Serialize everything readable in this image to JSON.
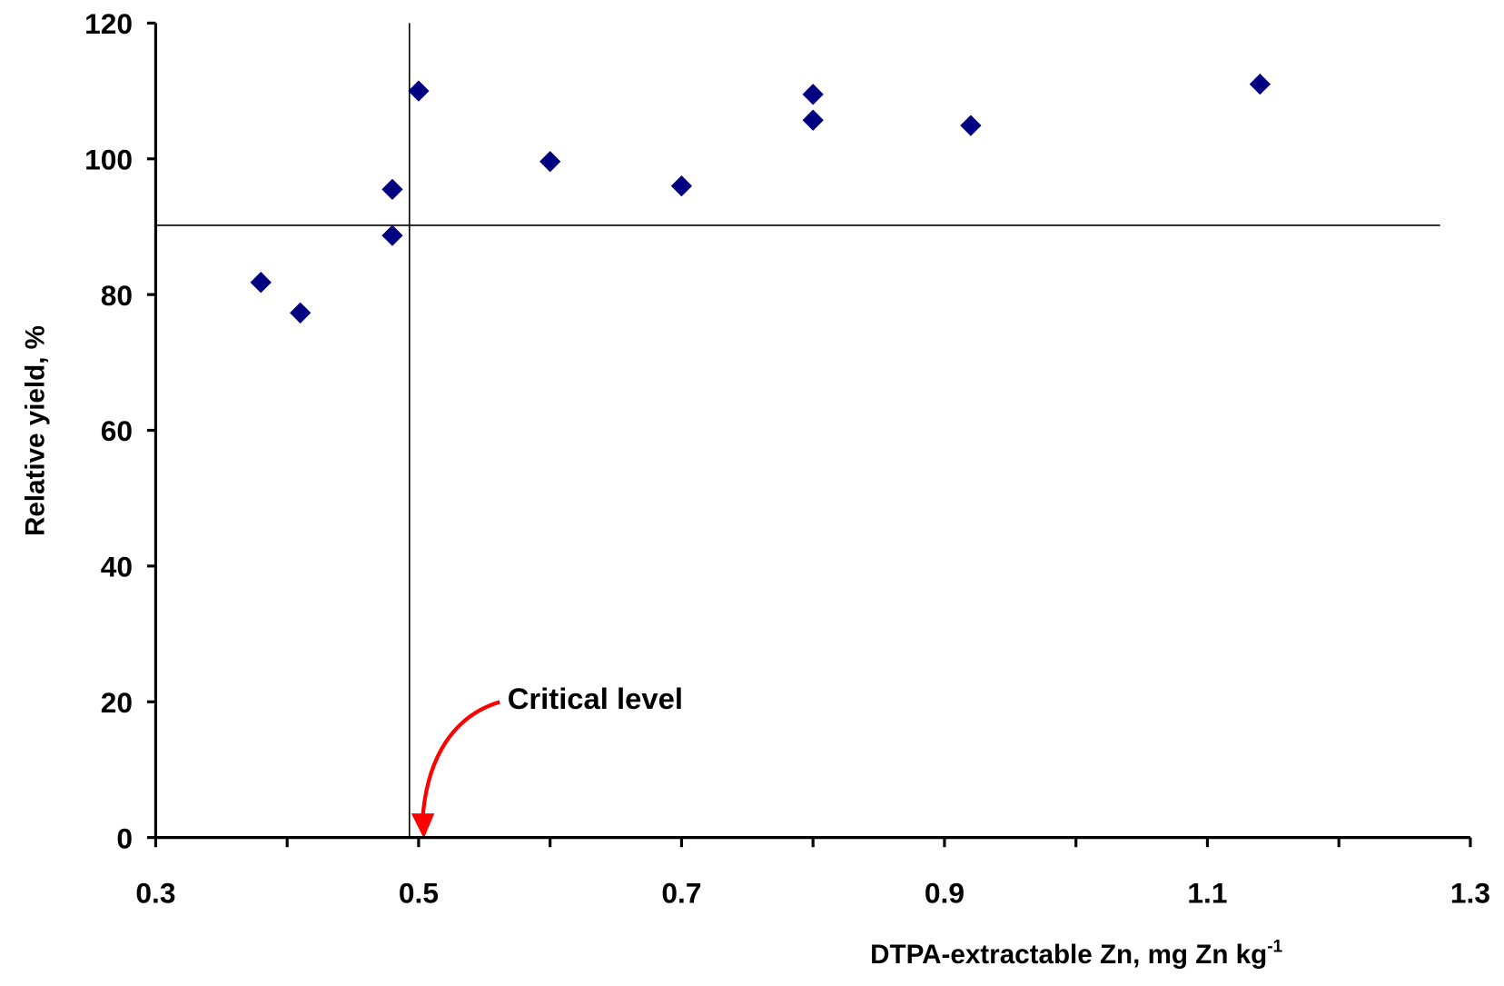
{
  "chart_data": {
    "type": "scatter",
    "xlabel": "DTPA-extractable Zn, mg Zn kg",
    "xlabel_superscript": "-1",
    "ylabel": "Relative yield, %",
    "x": [
      0.38,
      0.41,
      0.48,
      0.48,
      0.5,
      0.6,
      0.7,
      0.8,
      0.8,
      0.92,
      1.14
    ],
    "values": [
      81.8,
      77.3,
      95.5,
      88.7,
      110,
      99.6,
      96,
      109.5,
      105.7,
      104.9,
      111
    ],
    "color": "#000080",
    "xlim": [
      0.3,
      1.3
    ],
    "xticks": [
      0.3,
      0.5,
      0.7,
      0.9,
      1.1,
      1.3
    ],
    "xminorticks": [
      0.4,
      0.6,
      0.8,
      1.0,
      1.2
    ],
    "ylim": [
      0,
      120
    ],
    "yticks": [
      0,
      20,
      40,
      60,
      80,
      100,
      120
    ],
    "reference_x": 0.493,
    "reference_y": 90.2,
    "reference_y_end": 1.277,
    "annotation": "Critical level",
    "annotation_color": "#ff0000"
  }
}
